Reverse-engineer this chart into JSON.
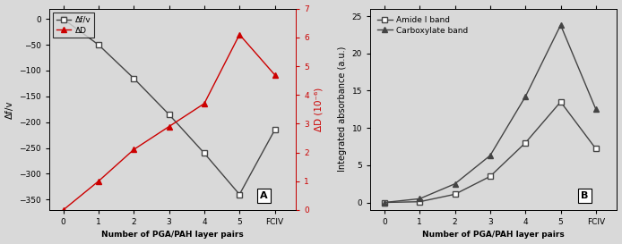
{
  "panel_A": {
    "x_labels": [
      "0",
      "1",
      "2",
      "3",
      "4",
      "5",
      "FCIV"
    ],
    "x_numeric": [
      0,
      1,
      2,
      3,
      4,
      5,
      6
    ],
    "delta_f": [
      0,
      -50,
      -115,
      -185,
      -260,
      -340,
      -215
    ],
    "delta_D": [
      0,
      1.0,
      2.1,
      2.9,
      3.7,
      6.1,
      4.7
    ],
    "ylabel_left": "Δf/v",
    "ylabel_right": "ΔD (10⁻⁶)",
    "xlabel": "Number of PGA/PAH layer pairs",
    "legend_f": "Δf/v",
    "legend_D": "ΔD",
    "color_f": "#444444",
    "color_D": "#cc0000",
    "ylim_left": [
      -370,
      20
    ],
    "ylim_right": [
      0,
      7
    ],
    "yticks_left": [
      -350,
      -300,
      -250,
      -200,
      -150,
      -100,
      -50,
      0
    ],
    "yticks_right": [
      0,
      1,
      2,
      3,
      4,
      5,
      6,
      7
    ],
    "label": "A"
  },
  "panel_B": {
    "x_labels": [
      "0",
      "1",
      "2",
      "3",
      "4",
      "5",
      "FCIV"
    ],
    "x_numeric": [
      0,
      1,
      2,
      3,
      4,
      5,
      6
    ],
    "amide": [
      0,
      0.1,
      1.1,
      3.5,
      8.0,
      13.5,
      7.2
    ],
    "carboxylate": [
      0,
      0.5,
      2.5,
      6.3,
      14.2,
      23.8,
      12.5
    ],
    "ylabel": "Integrated absorbance (a.u.)",
    "xlabel": "Number of PGA/PAH layer pairs",
    "legend_amide": "Amide I band",
    "legend_carboxylate": "Carboxylate band",
    "color": "#444444",
    "ylim": [
      -1,
      26
    ],
    "yticks": [
      0,
      5,
      10,
      15,
      20,
      25
    ],
    "label": "B"
  },
  "background_color": "#d9d9d9",
  "fig_width": 6.94,
  "fig_height": 2.73
}
